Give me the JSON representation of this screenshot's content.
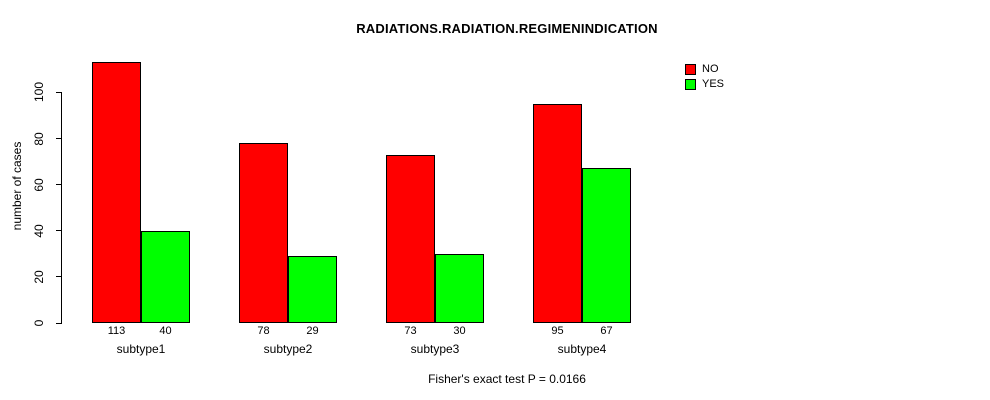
{
  "chart_data": {
    "type": "bar",
    "variant": "grouped",
    "title": "RADIATIONS.RADIATION.REGIMENINDICATION",
    "subtitle": "Fisher's exact test P = 0.0166",
    "xlabel": "",
    "ylabel": "number of cases",
    "categories": [
      "subtype1",
      "subtype2",
      "subtype3",
      "subtype4"
    ],
    "series": [
      {
        "name": "NO",
        "color": "#FF0000",
        "values": [
          113,
          78,
          73,
          95
        ]
      },
      {
        "name": "YES",
        "color": "#00FF00",
        "values": [
          40,
          29,
          30,
          67
        ]
      }
    ],
    "yticks": [
      0,
      20,
      40,
      60,
      80,
      100
    ],
    "ylim": [
      0,
      120
    ],
    "grid": false,
    "bar_value_labels_shown": true,
    "legend_position": "top-right",
    "axis_color": "#000000",
    "bar_border_color": "#000000",
    "background_color": "#FFFFFF"
  }
}
